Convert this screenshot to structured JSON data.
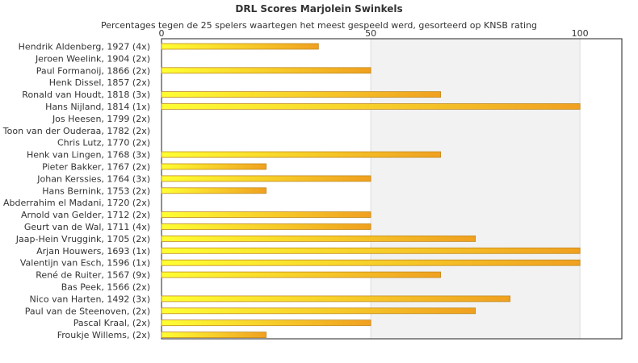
{
  "chart_data": {
    "type": "bar",
    "orientation": "horizontal",
    "title": "DRL Scores Marjolein Swinkels",
    "subtitle": "Percentages tegen de 25 spelers waartegen het meest gespeeld werd, gesorteerd op KNSB rating",
    "xlim": [
      0,
      110
    ],
    "x_ticks": [
      0,
      50,
      100
    ],
    "shaded_band": [
      50,
      100
    ],
    "grid": true,
    "categories": [
      "Hendrik Aldenberg, 1927 (4x)",
      "Jeroen Weelink, 1904 (2x)",
      "Paul Formanoij, 1866 (2x)",
      "Henk Dissel, 1857 (2x)",
      "Ronald van Houdt, 1818 (3x)",
      "Hans Nijland, 1814 (1x)",
      "Jos Heesen, 1799 (2x)",
      "Toon van der Ouderaa, 1782 (2x)",
      "Chris Lutz, 1770 (2x)",
      "Henk van Lingen, 1768 (3x)",
      "Pieter Bakker, 1767 (2x)",
      "Johan Kerssies, 1764 (3x)",
      "Hans Bernink, 1753 (2x)",
      "Abderrahim el Madani, 1720 (2x)",
      "Arnold van Gelder, 1712 (2x)",
      "Geurt van de Wal, 1711 (4x)",
      "Jaap-Hein Vruggink, 1705 (2x)",
      "Arjan Houwers, 1693 (1x)",
      "Valentijn van Esch, 1596 (1x)",
      "René de Ruiter, 1567 (9x)",
      "Bas Peek, 1566 (2x)",
      "Nico van Harten, 1492 (3x)",
      "Paul van de Steenoven,  (2x)",
      "Pascal Kraal,  (2x)",
      "Froukje Willems,  (2x)"
    ],
    "values": [
      37.5,
      0,
      50,
      0,
      66.7,
      100,
      0,
      0,
      0,
      66.7,
      25,
      50,
      25,
      0,
      50,
      50,
      75,
      100,
      100,
      66.7,
      0,
      83.3,
      75,
      50,
      25
    ],
    "colors": {
      "bar_start": "#ffff33",
      "bar_end": "#f0a020",
      "bar_stroke": "#c08a20",
      "band": "#f2f2f2",
      "frame": "#222222",
      "text": "#333333"
    }
  }
}
